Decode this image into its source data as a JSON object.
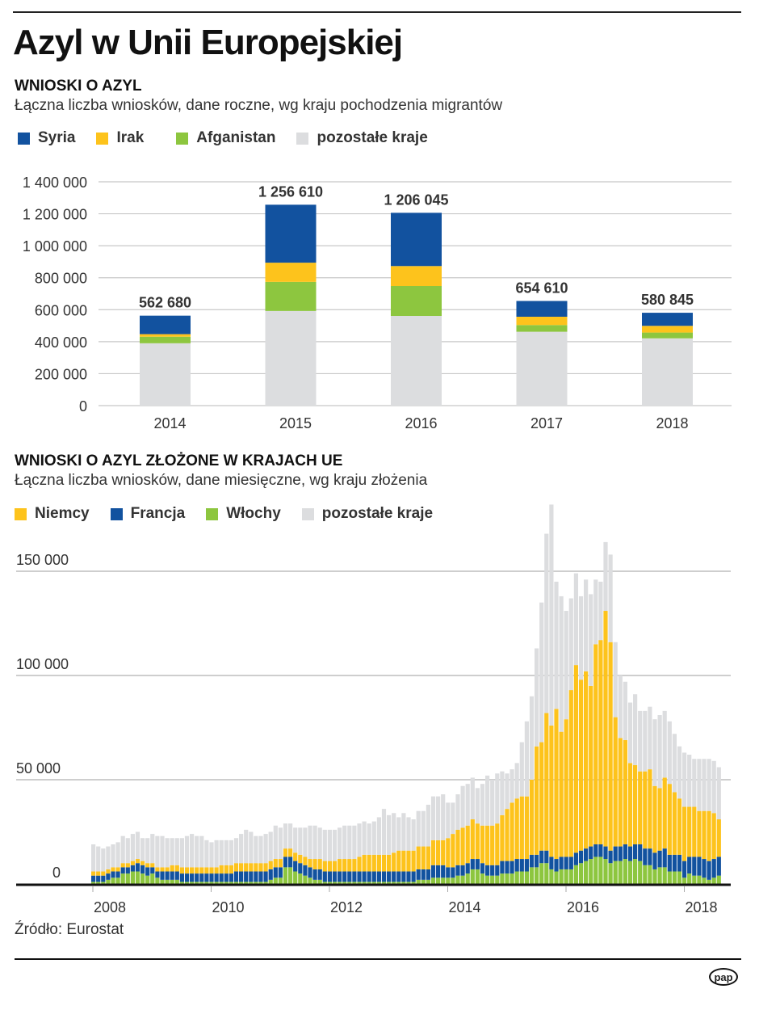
{
  "title": "Azyl w Unii Europejskiej",
  "source": "Źródło: Eurostat",
  "logo": "pap",
  "chart_data": [
    {
      "type": "bar",
      "stacked": true,
      "title": "WNIOSKI O AZYL",
      "subtitle": "Łączna liczba wniosków, dane roczne, wg kraju pochodzenia migrantów",
      "categories": [
        "2014",
        "2015",
        "2016",
        "2017",
        "2018"
      ],
      "series": [
        {
          "name": "pozostałe kraje",
          "color": "#dcdddf",
          "values": [
            390000,
            592000,
            561000,
            462000,
            421000
          ]
        },
        {
          "name": "Afganistan",
          "color": "#8dc63f",
          "values": [
            41000,
            182000,
            187000,
            42000,
            36000
          ]
        },
        {
          "name": "Irak",
          "color": "#fdc31c",
          "values": [
            16000,
            120000,
            125000,
            52000,
            42000
          ]
        },
        {
          "name": "Syria",
          "color": "#12529f",
          "values": [
            115680,
            362610,
            333045,
            98610,
            81845
          ]
        }
      ],
      "legend": [
        {
          "name": "Syria",
          "color": "#12529f"
        },
        {
          "name": "Irak",
          "color": "#fdc31c"
        },
        {
          "name": "Afganistan",
          "color": "#8dc63f"
        },
        {
          "name": "pozostałe kraje",
          "color": "#dcdddf"
        }
      ],
      "totals": [
        "562 680",
        "1 256 610",
        "1 206 045",
        "654 610",
        "580 845"
      ],
      "yticks": [
        {
          "v": 0,
          "label": "0"
        },
        {
          "v": 200000,
          "label": "200 000"
        },
        {
          "v": 400000,
          "label": "400 000"
        },
        {
          "v": 600000,
          "label": "600 000"
        },
        {
          "v": 800000,
          "label": "800 000"
        },
        {
          "v": 1000000,
          "label": "1 000 000"
        },
        {
          "v": 1200000,
          "label": "1 200 000"
        },
        {
          "v": 1400000,
          "label": "1 400 000"
        }
      ],
      "ylim": [
        0,
        1400000
      ],
      "xlabel": "",
      "ylabel": "",
      "grid": true,
      "legend_position": "top-left"
    },
    {
      "type": "bar",
      "stacked": true,
      "title": "WNIOSKI O AZYL ZŁOŻONE W KRAJACH UE",
      "subtitle": "Łączna liczba wniosków, dane miesięczne, wg kraju złożenia",
      "x_start": "2008-01",
      "x_end": "2018-08",
      "legend": [
        {
          "name": "Niemcy",
          "color": "#fdc31c"
        },
        {
          "name": "Francja",
          "color": "#12529f"
        },
        {
          "name": "Włochy",
          "color": "#8dc63f"
        },
        {
          "name": "pozostałe kraje",
          "color": "#dcdddf"
        }
      ],
      "series": [
        {
          "name": "Włochy",
          "color": "#8dc63f",
          "values": [
            1,
            1,
            1,
            2,
            3,
            3,
            5,
            5,
            6,
            6,
            5,
            4,
            5,
            3,
            2,
            2,
            2,
            2,
            1,
            1,
            1,
            1,
            1,
            1,
            1,
            1,
            1,
            1,
            1,
            1,
            1,
            1,
            1,
            1,
            1,
            1,
            2,
            3,
            3,
            8,
            8,
            6,
            5,
            4,
            3,
            2,
            2,
            1,
            1,
            1,
            1,
            1,
            1,
            1,
            1,
            1,
            1,
            1,
            1,
            1,
            1,
            1,
            1,
            1,
            1,
            1,
            2,
            2,
            2,
            3,
            3,
            3,
            3,
            3,
            4,
            4,
            5,
            7,
            7,
            5,
            4,
            4,
            4,
            5,
            5,
            5,
            6,
            6,
            6,
            8,
            8,
            10,
            10,
            7,
            6,
            7,
            7,
            7,
            9,
            10,
            11,
            12,
            13,
            13,
            12,
            10,
            11,
            11,
            12,
            11,
            12,
            11,
            9,
            9,
            7,
            8,
            8,
            6,
            6,
            6,
            3,
            5,
            4,
            4,
            3,
            2,
            3,
            4
          ]
        },
        {
          "name": "Francja",
          "color": "#12529f",
          "values": [
            3,
            3,
            3,
            3,
            3,
            3,
            3,
            3,
            3,
            4,
            4,
            4,
            3,
            3,
            4,
            4,
            4,
            4,
            4,
            4,
            4,
            4,
            4,
            4,
            4,
            4,
            4,
            4,
            4,
            5,
            5,
            5,
            5,
            5,
            5,
            5,
            5,
            5,
            5,
            5,
            5,
            5,
            5,
            5,
            5,
            5,
            5,
            5,
            5,
            5,
            5,
            5,
            5,
            5,
            5,
            5,
            5,
            5,
            5,
            5,
            5,
            5,
            5,
            5,
            5,
            5,
            5,
            5,
            5,
            6,
            6,
            6,
            5,
            5,
            5,
            5,
            5,
            5,
            5,
            5,
            5,
            5,
            5,
            6,
            6,
            6,
            6,
            6,
            6,
            6,
            6,
            6,
            6,
            6,
            6,
            6,
            6,
            6,
            6,
            6,
            6,
            6,
            6,
            6,
            6,
            6,
            7,
            7,
            7,
            7,
            7,
            8,
            8,
            8,
            8,
            8,
            9,
            8,
            8,
            8,
            8,
            8,
            9,
            9,
            9,
            9,
            9,
            9
          ]
        },
        {
          "name": "Niemcy",
          "color": "#fdc31c",
          "values": [
            2,
            2,
            2,
            2,
            2,
            2,
            2,
            2,
            2,
            2,
            2,
            2,
            2,
            2,
            2,
            2,
            3,
            3,
            3,
            3,
            3,
            3,
            3,
            3,
            3,
            3,
            4,
            4,
            4,
            4,
            4,
            4,
            4,
            4,
            4,
            4,
            4,
            4,
            4,
            4,
            4,
            4,
            4,
            4,
            4,
            5,
            5,
            5,
            5,
            5,
            6,
            6,
            6,
            6,
            7,
            8,
            8,
            8,
            8,
            8,
            8,
            9,
            10,
            10,
            10,
            10,
            11,
            11,
            11,
            12,
            12,
            12,
            14,
            16,
            17,
            18,
            18,
            19,
            17,
            18,
            19,
            19,
            20,
            22,
            25,
            28,
            29,
            30,
            30,
            36,
            52,
            52,
            66,
            63,
            72,
            60,
            66,
            80,
            90,
            82,
            85,
            77,
            96,
            98,
            113,
            100,
            62,
            52,
            50,
            40,
            38,
            35,
            37,
            38,
            32,
            30,
            34,
            34,
            30,
            27,
            26,
            24,
            24,
            22,
            23,
            24,
            22,
            18
          ]
        },
        {
          "name": "pozostałe kraje",
          "color": "#dcdddf",
          "values": [
            13,
            12,
            11,
            11,
            11,
            12,
            13,
            12,
            13,
            13,
            11,
            12,
            14,
            15,
            15,
            14,
            13,
            13,
            14,
            15,
            16,
            15,
            15,
            13,
            12,
            13,
            12,
            12,
            12,
            12,
            14,
            16,
            15,
            13,
            13,
            14,
            14,
            16,
            15,
            12,
            12,
            12,
            13,
            14,
            16,
            16,
            15,
            15,
            15,
            15,
            15,
            16,
            16,
            16,
            16,
            16,
            15,
            16,
            18,
            22,
            19,
            19,
            16,
            18,
            16,
            15,
            17,
            17,
            20,
            21,
            21,
            22,
            17,
            15,
            17,
            20,
            20,
            20,
            17,
            20,
            24,
            22,
            24,
            21,
            17,
            16,
            17,
            26,
            36,
            40,
            47,
            67,
            86,
            106,
            61,
            65,
            52,
            44,
            44,
            40,
            44,
            44,
            31,
            28,
            33,
            42,
            36,
            30,
            28,
            29,
            34,
            29,
            29,
            30,
            32,
            35,
            32,
            30,
            28,
            25,
            26,
            25,
            23,
            25,
            25,
            25,
            25,
            25
          ]
        }
      ],
      "xticks": [
        "2008",
        "2010",
        "2012",
        "2014",
        "2016",
        "2018"
      ],
      "yticks": [
        {
          "v": 0,
          "label": "0"
        },
        {
          "v": 50000,
          "label": "50 000"
        },
        {
          "v": 100000,
          "label": "100 000"
        },
        {
          "v": 150000,
          "label": "150 000"
        }
      ],
      "value_unit": "thousands",
      "ylim": [
        0,
        170000
      ],
      "grid": true,
      "legend_position": "top-left"
    }
  ]
}
